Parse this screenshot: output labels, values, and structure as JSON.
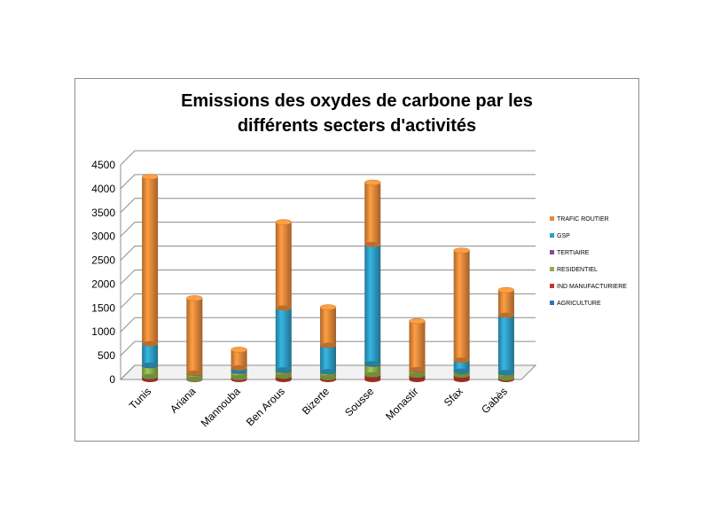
{
  "chart_data": {
    "type": "bar",
    "stacked": true,
    "title": "Emissions des oxydes de carbone par les différents secters d'activités",
    "title_lines": [
      "Emissions des oxydes de carbone par les",
      "différents secters d'activités"
    ],
    "xlabel": "",
    "ylabel": "",
    "ylim": [
      0,
      4500
    ],
    "yticks": [
      0,
      500,
      1000,
      1500,
      2000,
      2500,
      3000,
      3500,
      4000,
      4500
    ],
    "grid": true,
    "legend_position": "right",
    "categories": [
      "Tunis",
      "Ariana",
      "Mannouba",
      "Ben Arous",
      "Bizerte",
      "Sousse",
      "Monastir",
      "Sfax",
      "Gabès"
    ],
    "series": [
      {
        "name": "AGRICULTURE",
        "color": "#2e75b6",
        "values": [
          0,
          0,
          0,
          0,
          0,
          0,
          0,
          0,
          0
        ]
      },
      {
        "name": "IND MANUFACTURIERE",
        "color": "#c0392b",
        "values": [
          60,
          10,
          40,
          70,
          40,
          100,
          90,
          90,
          30
        ]
      },
      {
        "name": "RESIDENTIEL",
        "color": "#8db04b",
        "values": [
          230,
          120,
          130,
          120,
          120,
          220,
          110,
          80,
          110
        ]
      },
      {
        "name": "TERTIAIRE",
        "color": "#7b4f9e",
        "values": [
          10,
          5,
          5,
          10,
          5,
          10,
          5,
          5,
          5
        ]
      },
      {
        "name": "GSP",
        "color": "#2f9fc7",
        "values": [
          450,
          0,
          70,
          1300,
          550,
          2500,
          0,
          230,
          1200
        ]
      },
      {
        "name": "TRAFIC ROUTIER",
        "color": "#e8893a",
        "values": [
          3500,
          1570,
          380,
          1800,
          800,
          1300,
          1020,
          2300,
          530
        ]
      }
    ]
  }
}
